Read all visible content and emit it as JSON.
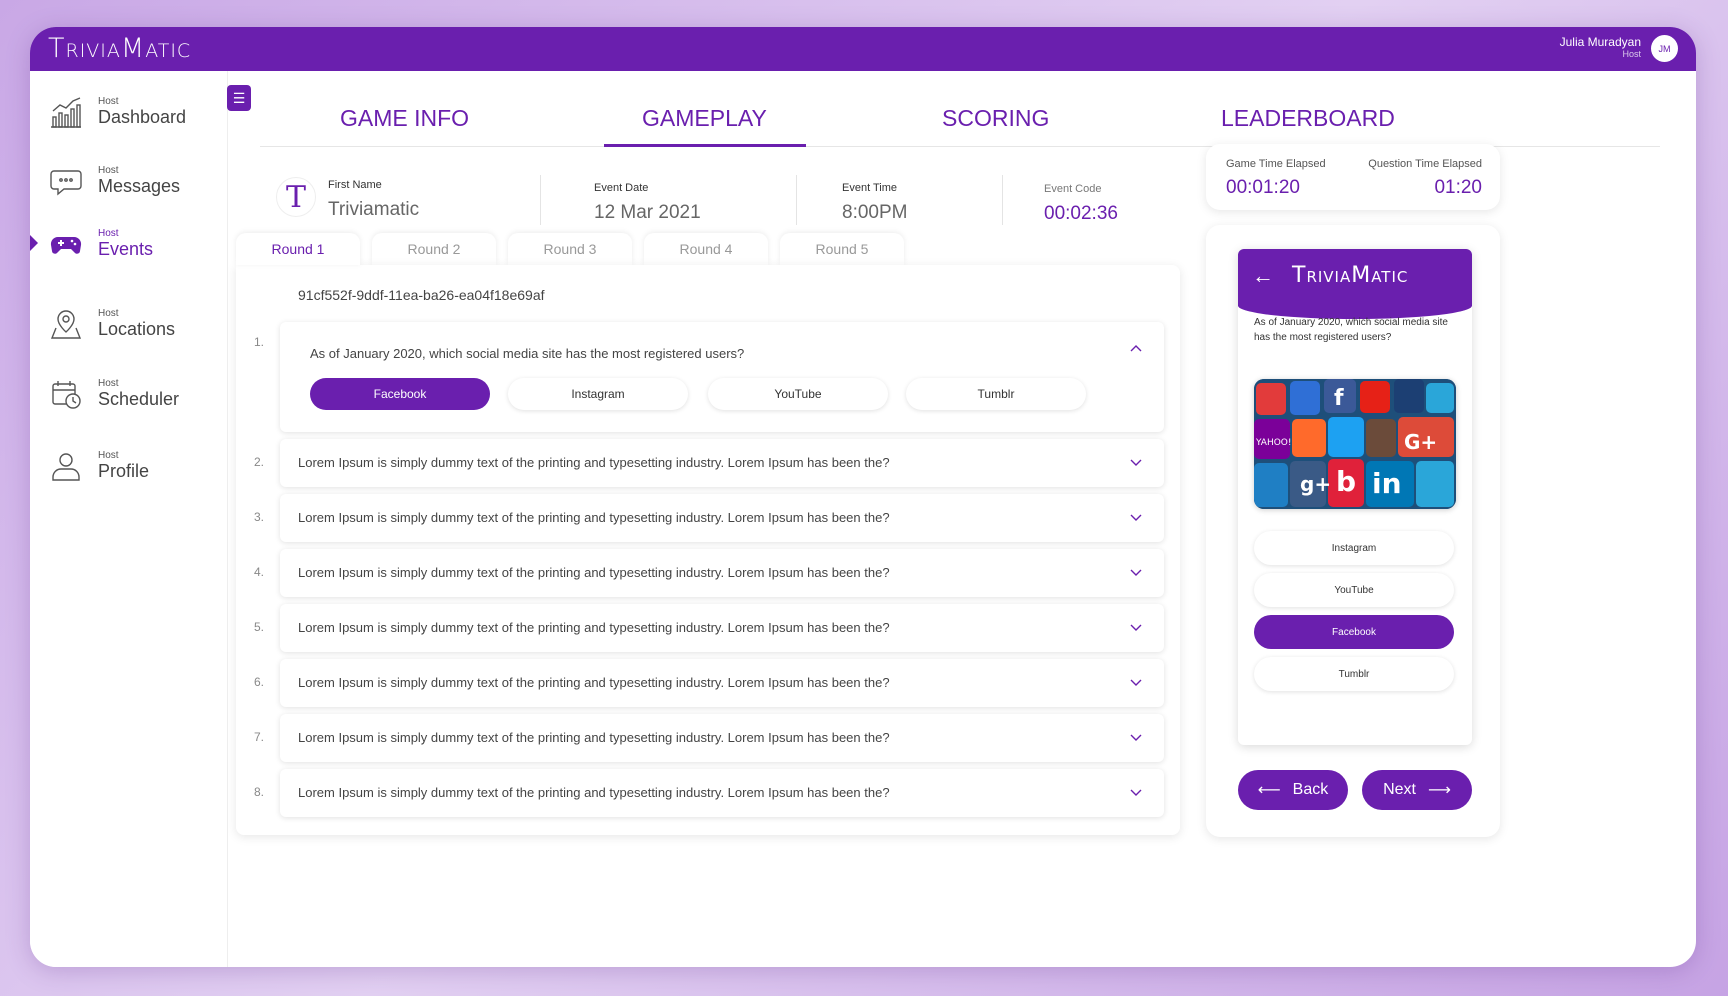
{
  "app": {
    "brand": "TriviaMatic",
    "accent": "#6a1fae"
  },
  "user": {
    "name": "Julia Muradyan",
    "role": "Host",
    "initials": "JM"
  },
  "sidebar": {
    "items": [
      {
        "small": "Host",
        "label": "Dashboard",
        "icon": "dashboard-chart-icon"
      },
      {
        "small": "Host",
        "label": "Messages",
        "icon": "chat-bubble-icon"
      },
      {
        "small": "Host",
        "label": "Events",
        "icon": "gamepad-icon",
        "active": true
      },
      {
        "small": "Host",
        "label": "Locations",
        "icon": "map-pin-icon"
      },
      {
        "small": "Host",
        "label": "Scheduler",
        "icon": "calendar-clock-icon"
      },
      {
        "small": "Host",
        "label": "Profile",
        "icon": "user-icon"
      }
    ]
  },
  "tabs": [
    {
      "label": "GAME INFO"
    },
    {
      "label": "GAMEPLAY",
      "active": true
    },
    {
      "label": "SCORING"
    },
    {
      "label": "LEADERBOARD"
    }
  ],
  "info": {
    "logo_letter": "T",
    "first_name_label": "First Name",
    "first_name": "Triviamatic",
    "event_date_label": "Event Date",
    "event_date": "12 Mar 2021",
    "event_time_label": "Event Time",
    "event_time": "8:00PM",
    "event_code_label": "Event Code",
    "event_code": "00:02:36"
  },
  "timers": {
    "game_label": "Game Time Elapsed",
    "game_value": "00:01:20",
    "question_label": "Question Time Elapsed",
    "question_value": "01:20"
  },
  "rounds": [
    "Round 1",
    "Round 2",
    "Round 3",
    "Round 4",
    "Round 5"
  ],
  "round_id": "91cf552f-9ddf-11ea-ba26-ea04f18e69af",
  "questions": [
    {
      "num": "1.",
      "text": "As of January 2020, which social media site has the most registered users?",
      "answers": [
        "Facebook",
        "Instagram",
        "YouTube",
        "Tumblr"
      ],
      "selected": "Facebook"
    },
    {
      "num": "2.",
      "text": "Lorem Ipsum is simply dummy text of the printing and typesetting industry. Lorem Ipsum has been the?"
    },
    {
      "num": "3.",
      "text": "Lorem Ipsum is simply dummy text of the printing and typesetting industry. Lorem Ipsum has been the?"
    },
    {
      "num": "4.",
      "text": "Lorem Ipsum is simply dummy text of the printing and typesetting industry. Lorem Ipsum has been the?"
    },
    {
      "num": "5.",
      "text": "Lorem Ipsum is simply dummy text of the printing and typesetting industry. Lorem Ipsum has been the?"
    },
    {
      "num": "6.",
      "text": "Lorem Ipsum is simply dummy text of the printing and typesetting industry. Lorem Ipsum has been the?"
    },
    {
      "num": "7.",
      "text": "Lorem Ipsum is simply dummy text of the printing and typesetting industry. Lorem Ipsum has been the?"
    },
    {
      "num": "8.",
      "text": "Lorem Ipsum is simply dummy text of the printing and typesetting industry. Lorem Ipsum has been the?"
    }
  ],
  "preview": {
    "brand": "TriviaMatic",
    "question": "As of January 2020, which social media site has the most registered users?",
    "answers": [
      "Instagram",
      "YouTube",
      "Facebook",
      "Tumblr"
    ],
    "selected": "Facebook",
    "back_label": "Back",
    "next_label": "Next"
  }
}
